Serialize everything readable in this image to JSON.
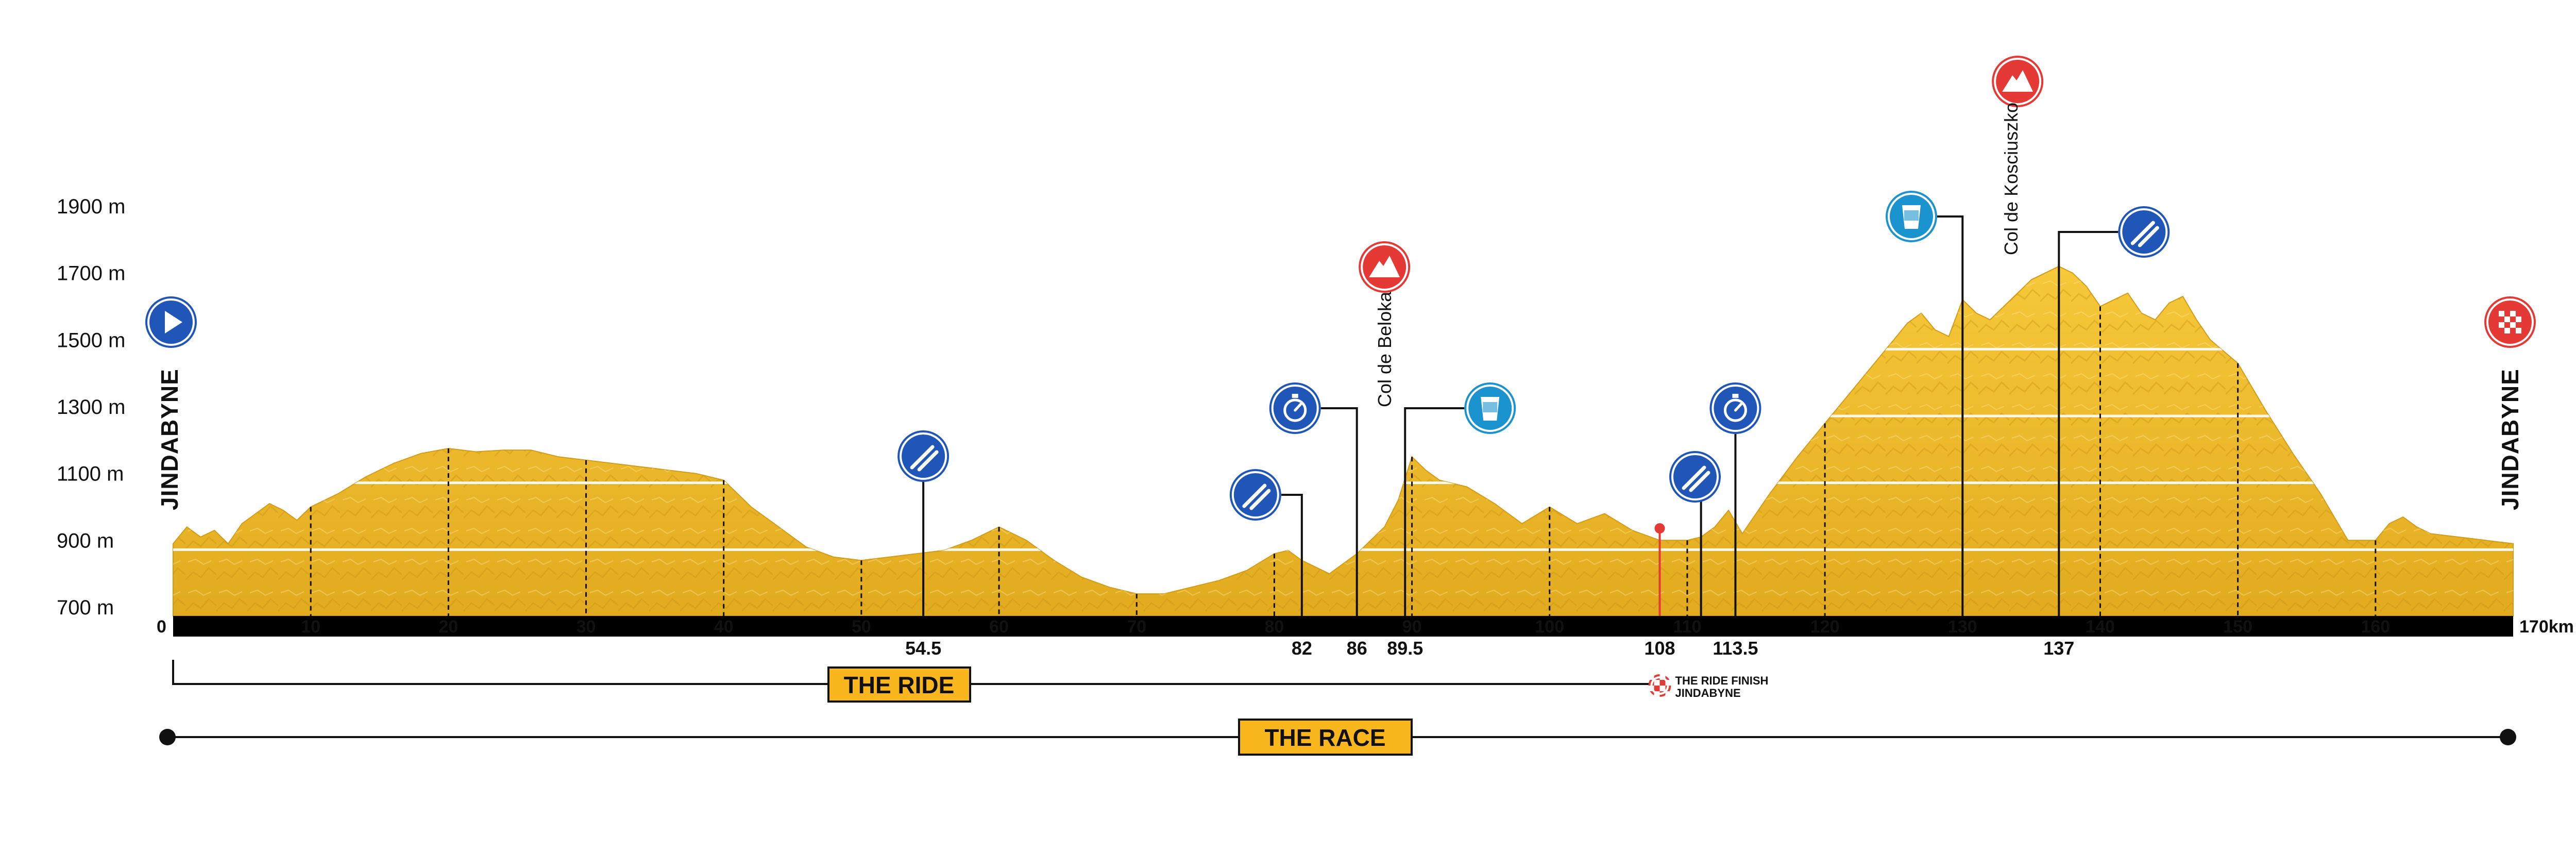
{
  "chart_data": {
    "type": "area",
    "xlim": [
      0,
      170
    ],
    "ylim": [
      700,
      1900
    ],
    "y_ticks": [
      "1900 m",
      "1700 m",
      "1500 m",
      "1300 m",
      "1100 m",
      "900 m",
      "700 m"
    ],
    "y_tick_values": [
      1900,
      1700,
      1500,
      1300,
      1100,
      900,
      700
    ],
    "x_ticks": [
      "0",
      "10",
      "20",
      "30",
      "40",
      "50",
      "60",
      "70",
      "80",
      "90",
      "100",
      "110",
      "120",
      "130",
      "140",
      "150",
      "160",
      "170km"
    ],
    "x_tick_values": [
      0,
      10,
      20,
      30,
      40,
      50,
      60,
      70,
      80,
      90,
      100,
      110,
      120,
      130,
      140,
      150,
      160,
      170
    ],
    "profile": {
      "x": [
        0,
        1,
        2,
        3,
        4,
        5,
        6,
        7,
        8,
        9,
        10,
        12,
        14,
        16,
        18,
        20,
        22,
        24,
        26,
        28,
        30,
        32,
        34,
        36,
        38,
        40,
        42,
        44,
        46,
        48,
        50,
        52,
        54,
        56,
        58,
        60,
        62,
        64,
        66,
        68,
        70,
        72,
        74,
        76,
        78,
        80,
        81,
        82,
        83,
        84,
        85,
        86,
        87,
        88,
        89,
        90,
        91,
        92,
        94,
        96,
        98,
        100,
        102,
        104,
        106,
        108,
        110,
        111,
        112,
        113,
        114,
        116,
        118,
        120,
        122,
        124,
        126,
        127,
        128,
        129,
        130,
        131,
        132,
        133,
        134,
        135,
        136,
        137,
        138,
        139,
        140,
        141,
        142,
        143,
        144,
        145,
        146,
        147,
        148,
        150,
        152,
        154,
        156,
        158,
        160,
        161,
        162,
        163,
        164,
        166,
        168,
        170
      ],
      "y": [
        890,
        940,
        910,
        930,
        890,
        950,
        980,
        1010,
        990,
        960,
        1000,
        1040,
        1090,
        1130,
        1160,
        1175,
        1165,
        1170,
        1170,
        1150,
        1140,
        1130,
        1120,
        1110,
        1100,
        1080,
        1000,
        940,
        880,
        850,
        840,
        850,
        860,
        870,
        900,
        940,
        900,
        840,
        790,
        760,
        740,
        740,
        760,
        780,
        810,
        860,
        870,
        840,
        820,
        800,
        830,
        860,
        900,
        940,
        1020,
        1150,
        1110,
        1080,
        1060,
        1010,
        950,
        1000,
        950,
        980,
        930,
        900,
        900,
        910,
        940,
        990,
        920,
        1040,
        1150,
        1250,
        1350,
        1450,
        1550,
        1580,
        1530,
        1510,
        1620,
        1580,
        1560,
        1600,
        1640,
        1680,
        1700,
        1720,
        1700,
        1660,
        1600,
        1620,
        1640,
        1580,
        1560,
        1610,
        1630,
        1560,
        1500,
        1430,
        1290,
        1160,
        1040,
        900,
        900,
        950,
        970,
        940,
        920,
        910,
        900,
        890
      ]
    },
    "markers": [
      {
        "km": 54.5,
        "label": "54.5",
        "icon": "food-icon",
        "color": "#1f56b8"
      },
      {
        "km": 82,
        "label": "82",
        "icon": "food-icon",
        "color": "#1f56b8"
      },
      {
        "km": 86,
        "label": "86",
        "icon": "stopwatch-icon",
        "color": "#1f56b8"
      },
      {
        "km": 89.5,
        "label": "89.5",
        "icon": "drink-icon",
        "color": "#1a93cf"
      },
      {
        "km": 108,
        "label": "108",
        "icon": "ride-finish",
        "color": "#e53935"
      },
      {
        "km": 113.5,
        "label": "113.5",
        "icon": "stopwatch-icon",
        "color": "#1f56b8"
      },
      {
        "km": 137,
        "label": "137",
        "icon": "food-icon",
        "color": "#1f56b8"
      }
    ],
    "minor_markers": [
      {
        "km": 130,
        "icon": "drink-icon",
        "color": "#1a93cf"
      },
      {
        "km": 111,
        "icon": "food-icon",
        "color": "#1f56b8"
      }
    ],
    "climbs": [
      {
        "km": 88,
        "name": "Col de Beloka",
        "icon": "mountain-icon",
        "color": "#e53935"
      },
      {
        "km": 134,
        "name": "Col de Kosciuszko",
        "icon": "mountain-icon",
        "color": "#e53935"
      }
    ],
    "start": {
      "km": 0,
      "town": "JINDABYNE",
      "icon": "play-icon",
      "color": "#1f56b8"
    },
    "finish": {
      "km": 170,
      "town": "JINDABYNE",
      "icon": "checkered-flag-icon",
      "color": "#e53935"
    },
    "ride": {
      "label": "THE RIDE",
      "start_km": 0,
      "end_km": 108,
      "finish_label_1": "THE RIDE FINISH",
      "finish_label_2": "JINDABYNE"
    },
    "race": {
      "label": "THE RACE",
      "start_km": 0,
      "end_km": 170
    }
  },
  "colors": {
    "terrain_fill": "#f2c12e",
    "terrain_dark": "#d49b17",
    "axis_bar": "#000000",
    "badge_fill": "#f9b61d"
  }
}
